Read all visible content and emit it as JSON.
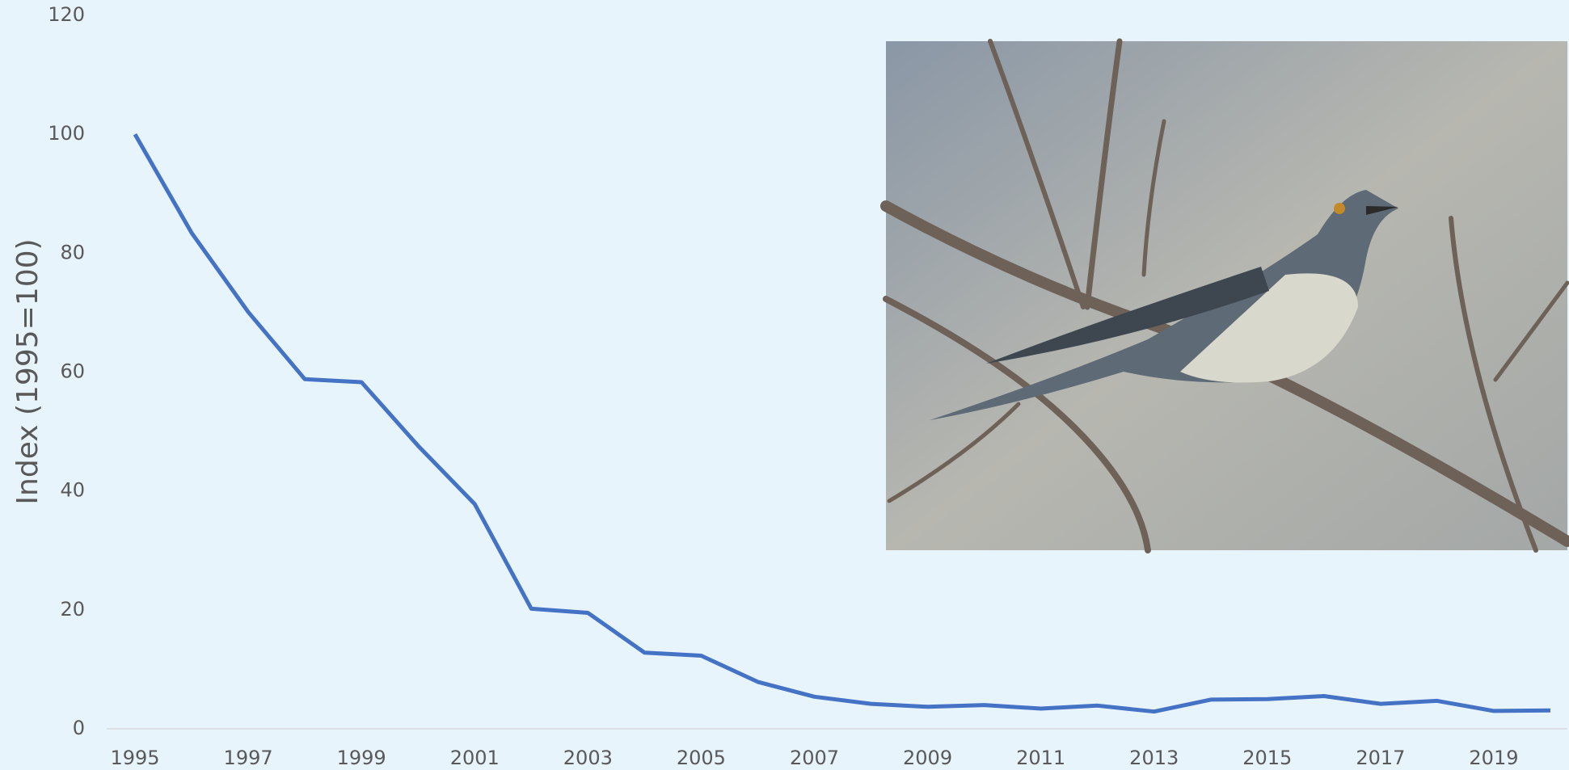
{
  "chart_data": {
    "type": "line",
    "y_label": "Index (1995=100)",
    "x": [
      1995,
      1996,
      1997,
      1998,
      1999,
      2000,
      2001,
      2002,
      2003,
      2004,
      2005,
      2006,
      2007,
      2008,
      2009,
      2010,
      2011,
      2012,
      2013,
      2014,
      2015,
      2016,
      2017,
      2018,
      2019,
      2020
    ],
    "series": [
      {
        "color": "#4472c4",
        "values": [
          100,
          83.4,
          70.1,
          58.8,
          58.3,
          47.6,
          37.8,
          20.2,
          19.5,
          12.8,
          12.3,
          7.9,
          5.4,
          4.2,
          3.7,
          4.0,
          3.4,
          3.9,
          2.9,
          4.9,
          5.0,
          5.5,
          4.2,
          4.7,
          3.0,
          3.1
        ]
      }
    ],
    "xlim": [
      1994.5,
      2020.3
    ],
    "xticks": [
      1995,
      1997,
      1999,
      2001,
      2003,
      2005,
      2007,
      2009,
      2011,
      2013,
      2015,
      2017,
      2019
    ],
    "ylim": [
      0,
      120
    ],
    "yticks": [
      0,
      20,
      40,
      60,
      80,
      100,
      120
    ],
    "grid": false
  }
}
